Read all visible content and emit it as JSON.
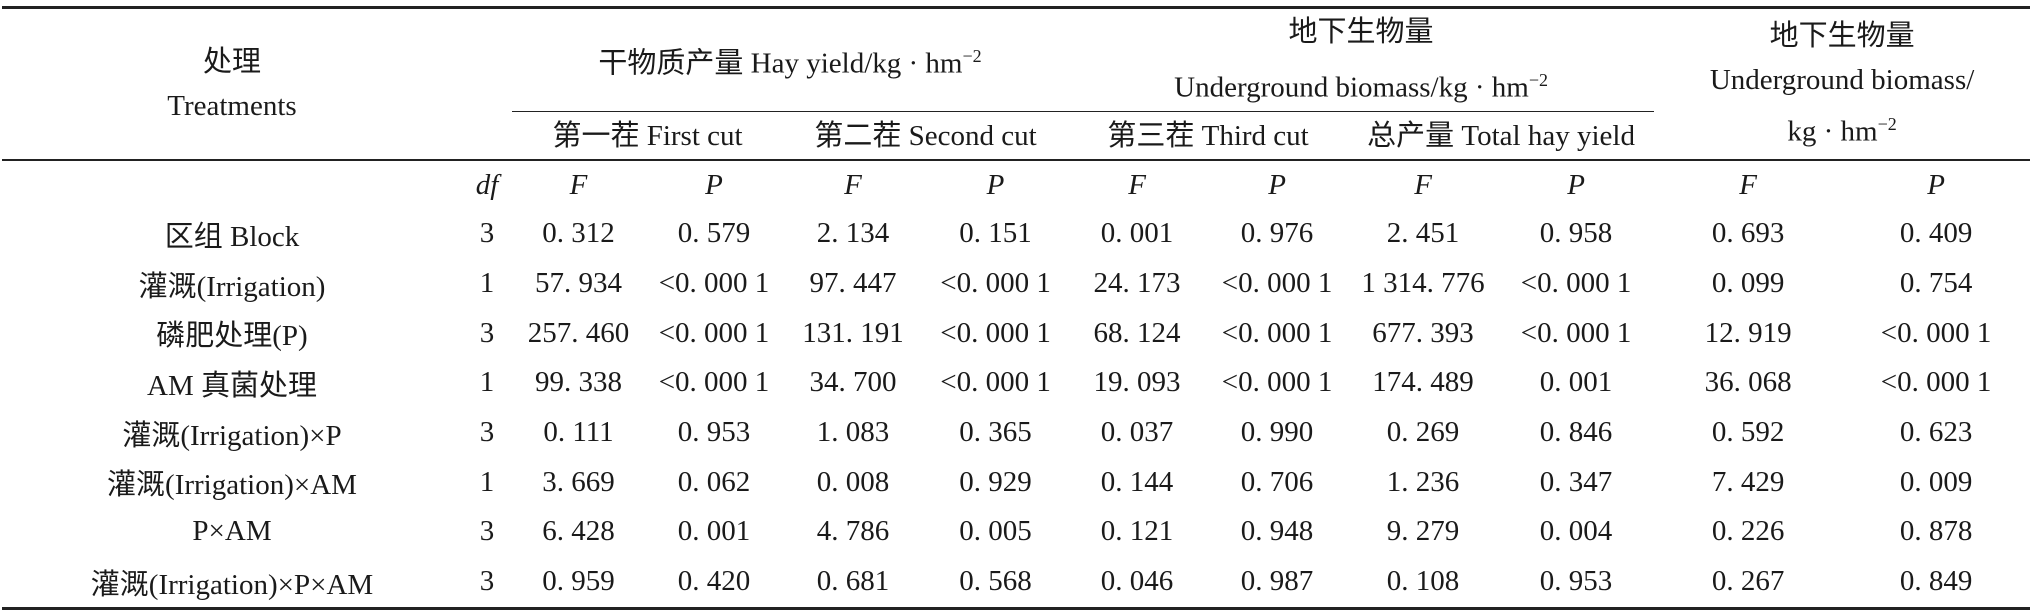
{
  "table": {
    "header": {
      "treatments_cn": "处理",
      "treatments_en": "Treatments",
      "hay_yield_group": "干物质产量 Hay yield/kg · hm",
      "hay_yield_sup": "−2",
      "underground_group_cn": "地下生物量",
      "underground_group_en": "Underground biomass/kg · hm",
      "underground_group_sup": "−2",
      "underground2_cn": "地下生物量",
      "underground2_en": "Underground biomass/",
      "underground2_unit": "kg · hm",
      "underground2_sup": "−2",
      "cut1": "第一茬 First cut",
      "cut2": "第二茬 Second cut",
      "cut3": "第三茬 Third cut",
      "total": "总产量 Total hay yield"
    },
    "symbols": [
      "df",
      "F",
      "P",
      "F",
      "P",
      "F",
      "P",
      "F",
      "P",
      "F",
      "P"
    ],
    "rows": [
      {
        "label": "区组 Block",
        "values": [
          "3",
          "0. 312",
          "0. 579",
          "2. 134",
          "0. 151",
          "0. 001",
          "0. 976",
          "2. 451",
          "0. 958",
          "0. 693",
          "0. 409"
        ]
      },
      {
        "label": "灌溉(Irrigation)",
        "values": [
          "1",
          "57. 934",
          "<0. 000 1",
          "97. 447",
          "<0. 000 1",
          "24. 173",
          "<0. 000 1",
          "1 314. 776",
          "<0. 000 1",
          "0. 099",
          "0. 754"
        ]
      },
      {
        "label": "磷肥处理(P)",
        "values": [
          "3",
          "257. 460",
          "<0. 000 1",
          "131. 191",
          "<0. 000 1",
          "68. 124",
          "<0. 000 1",
          "677. 393",
          "<0. 000 1",
          "12. 919",
          "<0. 000 1"
        ]
      },
      {
        "label": "AM 真菌处理",
        "values": [
          "1",
          "99. 338",
          "<0. 000 1",
          "34. 700",
          "<0. 000 1",
          "19. 093",
          "<0. 000 1",
          "174. 489",
          "0. 001",
          "36. 068",
          "<0. 000 1"
        ]
      },
      {
        "label": "灌溉(Irrigation)×P",
        "values": [
          "3",
          "0. 111",
          "0. 953",
          "1. 083",
          "0. 365",
          "0. 037",
          "0. 990",
          "0. 269",
          "0. 846",
          "0. 592",
          "0. 623"
        ]
      },
      {
        "label": "灌溉(Irrigation)×AM",
        "values": [
          "1",
          "3. 669",
          "0. 062",
          "0. 008",
          "0. 929",
          "0. 144",
          "0. 706",
          "1. 236",
          "0. 347",
          "7. 429",
          "0. 009"
        ]
      },
      {
        "label": "P×AM",
        "values": [
          "3",
          "6. 428",
          "0. 001",
          "4. 786",
          "0. 005",
          "0. 121",
          "0. 948",
          "9. 279",
          "0. 004",
          "0. 226",
          "0. 878"
        ]
      },
      {
        "label": "灌溉(Irrigation)×P×AM",
        "values": [
          "3",
          "0. 959",
          "0. 420",
          "0. 681",
          "0. 568",
          "0. 046",
          "0. 987",
          "0. 108",
          "0. 953",
          "0. 267",
          "0. 849"
        ]
      }
    ]
  }
}
